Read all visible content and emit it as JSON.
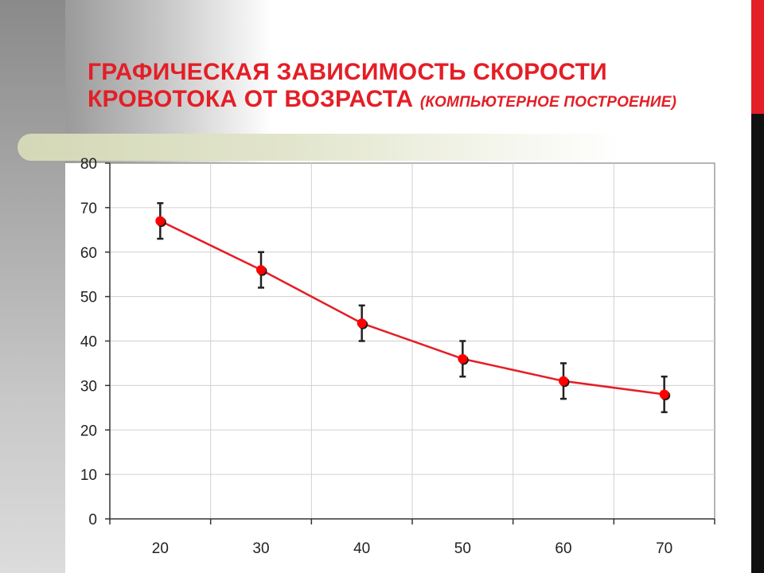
{
  "slide": {
    "title_line1": "Графическая зависимость скорости",
    "title_line2": "кровотока от возраста",
    "title_note": "(компьютерное построение)",
    "colors": {
      "title": "#e41e26",
      "series": "#e41e26",
      "marker": "#ff0000",
      "error_bar": "#222222",
      "right_band_top": "#e41e26",
      "right_band_bottom": "#111111"
    }
  },
  "chart_data": {
    "type": "line",
    "x": [
      20,
      30,
      40,
      50,
      60,
      70
    ],
    "series": [
      {
        "values": [
          67,
          56,
          44,
          36,
          31,
          28
        ],
        "error_low": [
          63,
          52,
          40,
          32,
          27,
          24
        ],
        "error_high": [
          71,
          60,
          48,
          40,
          35,
          32
        ]
      }
    ],
    "xticks": [
      "20",
      "30",
      "40",
      "50",
      "60",
      "70"
    ],
    "yticks": [
      "0",
      "10",
      "20",
      "30",
      "40",
      "50",
      "60",
      "70",
      "80"
    ],
    "ylim": [
      0,
      80
    ],
    "xlabel": "",
    "ylabel": "",
    "grid": true,
    "legend": "none"
  }
}
